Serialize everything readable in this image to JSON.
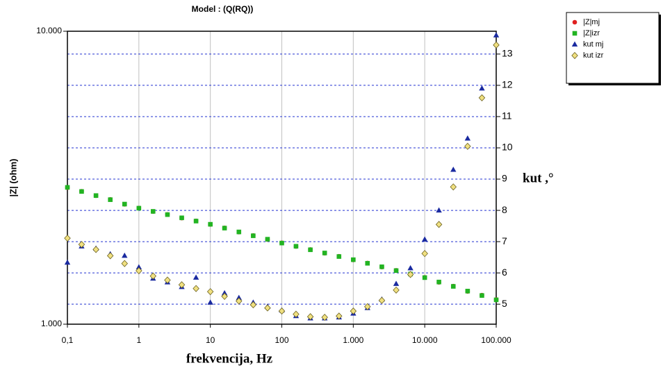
{
  "chart_data": {
    "type": "scatter",
    "title": "Model : (Q(RQ))",
    "xlabel": "frekvencija, Hz",
    "ylabel": "|Z| (ohm)",
    "y2label": "kut ,°",
    "xscale": "log",
    "yscale": "log",
    "xgrid": true,
    "y2grid": true,
    "legend": "top-right",
    "xlim": [
      0.1,
      100000
    ],
    "ylim": [
      1000,
      10000
    ],
    "y2lim": [
      4.36,
      13.73
    ],
    "xticks": [
      {
        "value": 0.1,
        "label": "0,1"
      },
      1,
      10,
      100,
      {
        "value": 1000,
        "label": "1.000"
      },
      {
        "value": 10000,
        "label": "10.000"
      },
      {
        "value": 100000,
        "label": "100.000"
      }
    ],
    "yticks": [
      {
        "value": 1000,
        "label": "1.000"
      },
      {
        "value": 10000,
        "label": "10.000"
      }
    ],
    "y2ticks": [
      5,
      6,
      7,
      8,
      9,
      10,
      11,
      12,
      13
    ],
    "x": [
      0.1,
      0.158,
      0.251,
      0.398,
      0.631,
      1,
      1.58,
      2.51,
      3.98,
      6.31,
      10,
      15.8,
      25.1,
      39.8,
      63.1,
      100,
      158,
      251,
      398,
      631,
      1000,
      1580,
      2510,
      3980,
      6310,
      10000,
      15800,
      25100,
      39800,
      63100,
      100000
    ],
    "series": [
      {
        "name": "|Z|mj",
        "color": "#e02020",
        "marker": "circle",
        "axis": "y",
        "values": [
          2925,
          2842,
          2745,
          2665,
          2566,
          2492,
          2424,
          2369,
          2303,
          2252,
          2190,
          2131,
          2062,
          2007,
          1947,
          1895,
          1842,
          1798,
          1747,
          1705,
          1657,
          1617,
          1567,
          1527,
          1480,
          1445,
          1390,
          1349,
          1294,
          1256,
          1214
        ]
      },
      {
        "name": "|Z|izr",
        "color": "#22b422",
        "marker": "square",
        "axis": "y",
        "values": [
          2931,
          2838,
          2748,
          2661,
          2570,
          2489,
          2427,
          2366,
          2307,
          2249,
          2193,
          2128,
          2065,
          2004,
          1950,
          1892,
          1845,
          1795,
          1750,
          1702,
          1660,
          1614,
          1570,
          1524,
          1483,
          1442,
          1393,
          1346,
          1297,
          1253,
          1211
        ]
      },
      {
        "name": "kut mj",
        "color": "#1a2aa0",
        "marker": "triangle",
        "axis": "y2",
        "values": [
          6.33,
          6.85,
          6.78,
          6.6,
          6.55,
          6.18,
          5.82,
          5.7,
          5.55,
          5.85,
          5.05,
          5.35,
          5.2,
          5.05,
          4.92,
          4.8,
          4.62,
          4.55,
          4.55,
          4.58,
          4.7,
          4.88,
          5.15,
          5.65,
          6.15,
          7.07,
          8.0,
          9.3,
          10.3,
          11.9,
          13.6
        ]
      },
      {
        "name": "kut izr",
        "color": "#f0e080",
        "marker": "diamond",
        "axis": "y2",
        "values": [
          7.11,
          6.91,
          6.75,
          6.55,
          6.3,
          6.07,
          5.9,
          5.77,
          5.62,
          5.5,
          5.4,
          5.25,
          5.1,
          4.98,
          4.88,
          4.78,
          4.68,
          4.6,
          4.58,
          4.62,
          4.78,
          4.92,
          5.12,
          5.45,
          5.95,
          6.62,
          7.55,
          8.75,
          10.05,
          11.6,
          13.29
        ]
      }
    ]
  }
}
